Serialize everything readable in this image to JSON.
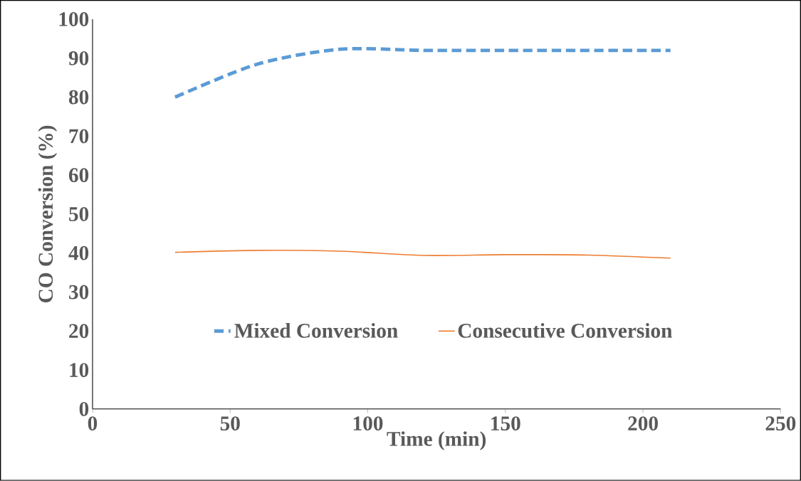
{
  "chart_data": {
    "type": "line",
    "xlabel": "Time (min)",
    "ylabel": "CO Conversion (%)",
    "xlim": [
      0,
      250
    ],
    "xticks": [
      0,
      50,
      100,
      150,
      200,
      250
    ],
    "ylim": [
      0,
      100
    ],
    "yticks": [
      0,
      10,
      20,
      30,
      40,
      50,
      60,
      70,
      80,
      90,
      100
    ],
    "grid": false,
    "legend": "bottom",
    "marker": "none",
    "series": [
      {
        "name": "Mixed Conversion",
        "color": "#5b9bd5",
        "line_style": "dashed",
        "x": [
          30,
          60,
          90,
          120,
          150,
          180,
          210
        ],
        "values": [
          80,
          88.5,
          92.3,
          92,
          92,
          92,
          92
        ]
      },
      {
        "name": "Consecutive Conversion",
        "color": "#ed7d31",
        "line_style": "solid",
        "x": [
          30,
          60,
          90,
          120,
          150,
          180,
          210
        ],
        "values": [
          40.2,
          40.7,
          40.5,
          39.4,
          39.6,
          39.5,
          38.7
        ]
      }
    ]
  }
}
